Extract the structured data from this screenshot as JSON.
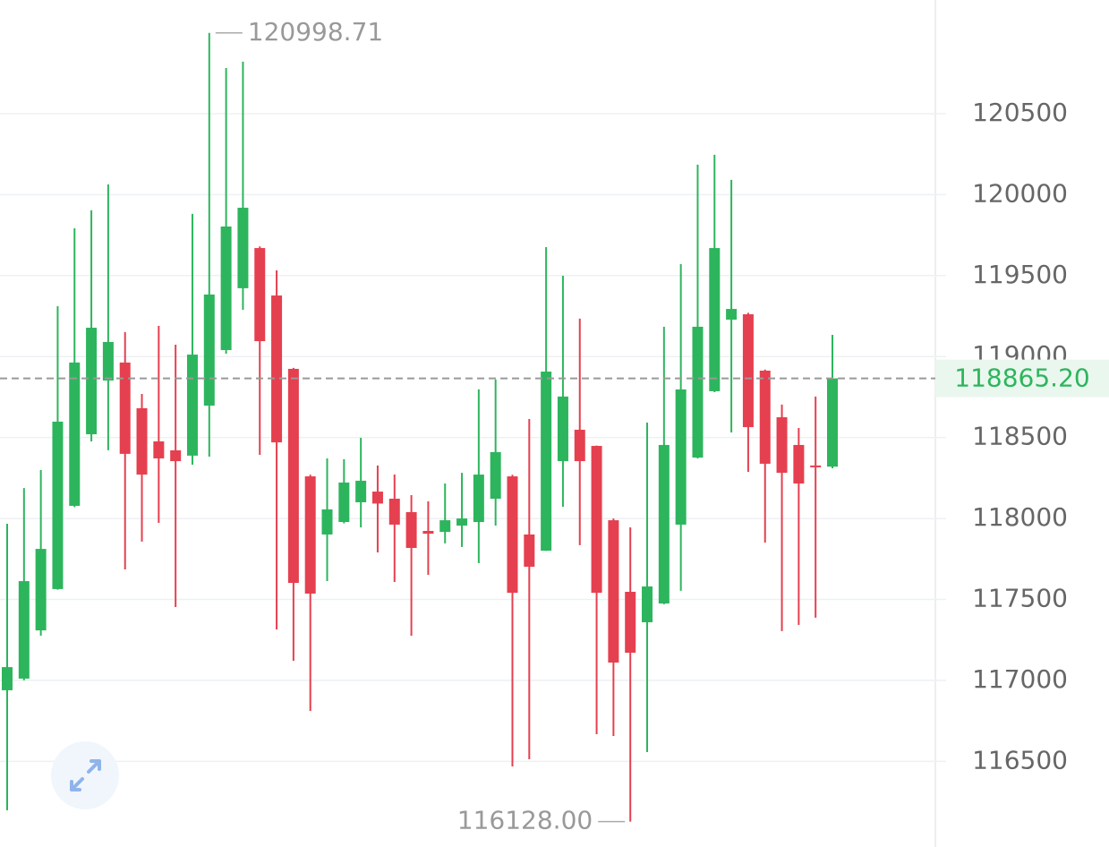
{
  "chart_data": {
    "type": "candlestick",
    "up_color": "#2db55d",
    "down_color": "#e5404f",
    "open": [
      116939,
      117011,
      117309,
      117564,
      118078,
      118520,
      118852,
      118963,
      118681,
      118476,
      118421,
      118388,
      118697,
      119040,
      119422,
      119670,
      119377,
      118924,
      118260,
      117901,
      117978,
      118100,
      118166,
      118122,
      118039,
      117923,
      117917,
      117956,
      117978,
      118122,
      118260,
      117901,
      117801,
      118354,
      118548,
      118448,
      117989,
      117547,
      117359,
      117475,
      117962,
      118376,
      118786,
      119228,
      119261,
      118913,
      118625,
      118454,
      118327,
      118320
    ],
    "high": [
      117967,
      118188,
      118299,
      119311,
      119792,
      119903,
      120063,
      119151,
      118769,
      119189,
      119073,
      119881,
      120998.71,
      120782,
      120821,
      119680,
      119532,
      118930,
      118270,
      118371,
      118366,
      118498,
      118327,
      118271,
      118144,
      118106,
      118216,
      118282,
      118797,
      118858,
      118270,
      118614,
      119676,
      119499,
      119234,
      118450,
      118000,
      117945,
      118592,
      119184,
      119571,
      120185,
      120246,
      120091,
      119270,
      118920,
      118703,
      118559,
      118753,
      119134
    ],
    "low": [
      116198,
      117000,
      117276,
      117560,
      118070,
      118476,
      118421,
      117685,
      117857,
      117973,
      117453,
      118332,
      118382,
      119018,
      119289,
      118393,
      117315,
      117121,
      116811,
      117613,
      117970,
      117945,
      117790,
      117608,
      117276,
      117652,
      117846,
      117824,
      117724,
      117956,
      116469,
      116513,
      117800,
      118072,
      117835,
      116668,
      116657,
      116128.0,
      116557,
      117470,
      117553,
      118370,
      118780,
      118531,
      118288,
      117851,
      117304,
      117342,
      117387,
      118310
    ],
    "close": [
      117082,
      117613,
      117812,
      118598,
      118963,
      119178,
      119090,
      118399,
      118271,
      118371,
      118354,
      119012,
      119383,
      119803,
      119919,
      119095,
      118470,
      117602,
      117536,
      118056,
      118222,
      118233,
      118092,
      117962,
      117818,
      117906,
      117989,
      118000,
      118271,
      118410,
      117541,
      117702,
      118907,
      118753,
      118354,
      117541,
      117110,
      117171,
      117580,
      118454,
      118797,
      119184,
      119670,
      119294,
      118564,
      118338,
      118282,
      118216,
      118320,
      118865.2
    ],
    "ylim": [
      115971,
      121202
    ],
    "yticks": [
      116500,
      117000,
      117500,
      118000,
      118500,
      119000,
      119500,
      120000,
      120500
    ],
    "grid": true,
    "annotations": [
      {
        "value": 120998.71,
        "label": "120998.71"
      },
      {
        "value": 116128.0,
        "label": "116128.00"
      }
    ],
    "last_price": {
      "value": 118865.2,
      "label": "118865.20"
    }
  }
}
